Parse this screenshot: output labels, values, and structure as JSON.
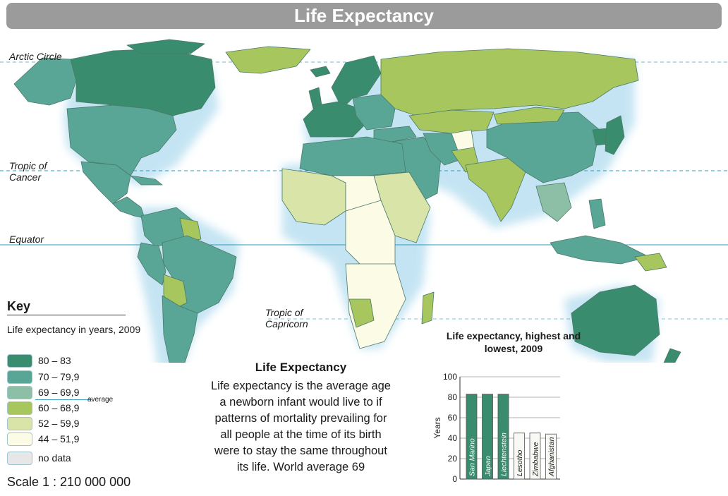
{
  "title": "Life Expectancy",
  "map_labels": {
    "arctic": "Arctic Circle",
    "cancer": "Tropic of Cancer",
    "equator": "Equator",
    "capricorn": "Tropic of Capricorn"
  },
  "key": {
    "title": "Key",
    "subtitle": "Life expectancy in years, 2009",
    "items": [
      {
        "label": "80 – 83",
        "color": "#3a8c6e"
      },
      {
        "label": "70 – 79,9",
        "color": "#59a697"
      },
      {
        "label": "69 – 69,9",
        "color": "#8cbfa5"
      },
      {
        "label": "60 – 68,9",
        "color": "#a8c65e"
      },
      {
        "label": "52 – 59,9",
        "color": "#d9e4a9"
      },
      {
        "label": "44 – 51,9",
        "color": "#fbfbe6"
      },
      {
        "label": "no data",
        "color": "#e7e7e7"
      }
    ],
    "average_label": "average"
  },
  "scale": "Scale 1 : 210 000 000",
  "info": {
    "title": "Life Expectancy",
    "text": "Life expectancy is the average age a newborn infant would live to if patterns of mortality prevailing for all people at the time of its birth were to stay the same throughout its life. World average 69"
  },
  "chart_data": {
    "type": "bar",
    "title": "Life expectancy, highest and lowest, 2009",
    "ylabel": "Years",
    "ylim": [
      0,
      100
    ],
    "yticks": [
      0,
      20,
      40,
      60,
      80,
      100
    ],
    "categories": [
      "San Marino",
      "Japan",
      "Liechtenstein",
      "Lesotho",
      "Zimbabwe",
      "Afghanistan"
    ],
    "values": [
      83,
      83,
      83,
      45,
      45,
      44
    ],
    "colors": [
      "#3a8c6e",
      "#3a8c6e",
      "#3a8c6e",
      "#f8f8f4",
      "#f8f8f4",
      "#f8f8f4"
    ]
  }
}
